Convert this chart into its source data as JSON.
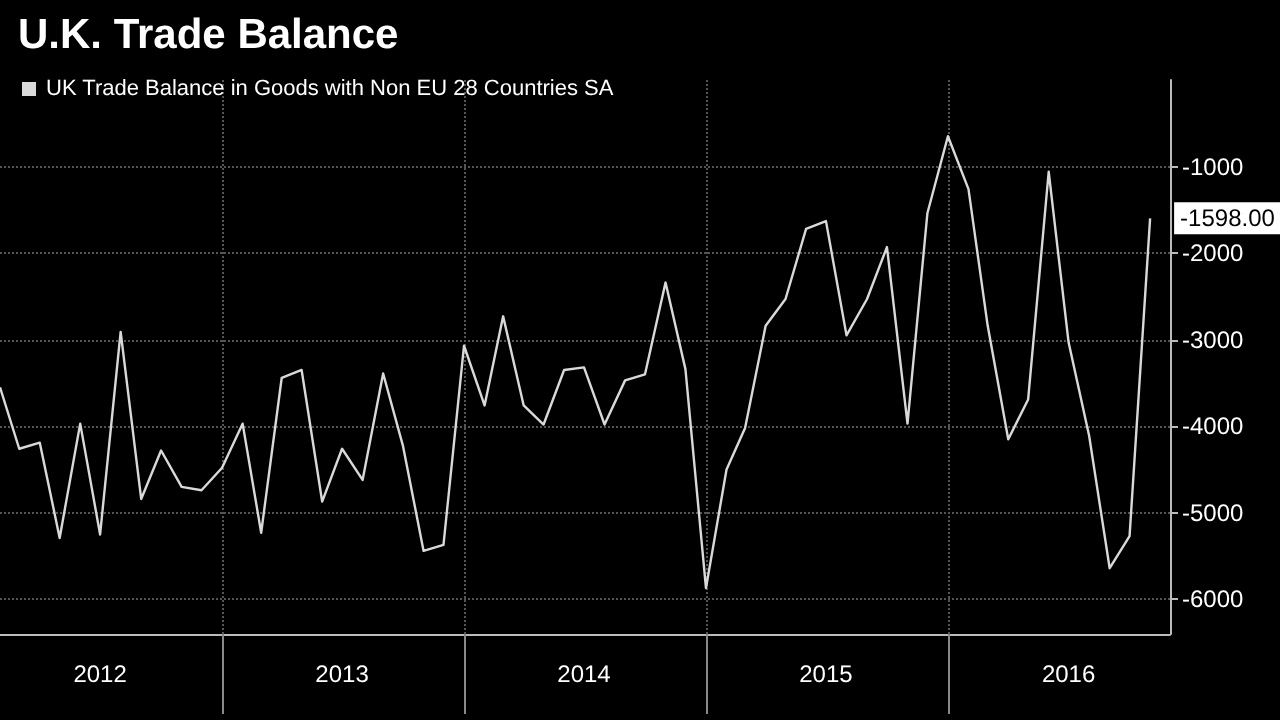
{
  "chart_data": {
    "type": "line",
    "title": "U.K. Trade Balance",
    "x": [
      "2012-02",
      "2012-03",
      "2012-04",
      "2012-05",
      "2012-06",
      "2012-07",
      "2012-08",
      "2012-09",
      "2012-10",
      "2012-11",
      "2012-12",
      "2013-01",
      "2013-02",
      "2013-03",
      "2013-04",
      "2013-05",
      "2013-06",
      "2013-07",
      "2013-08",
      "2013-09",
      "2013-10",
      "2013-11",
      "2013-12",
      "2014-01",
      "2014-02",
      "2014-03",
      "2014-04",
      "2014-05",
      "2014-06",
      "2014-07",
      "2014-08",
      "2014-09",
      "2014-10",
      "2014-11",
      "2014-12",
      "2015-01",
      "2015-02",
      "2015-03",
      "2015-04",
      "2015-05",
      "2015-06",
      "2015-07",
      "2015-08",
      "2015-09",
      "2015-10",
      "2015-11",
      "2015-12",
      "2016-01",
      "2016-02",
      "2016-03",
      "2016-04",
      "2016-05",
      "2016-06",
      "2016-07",
      "2016-08",
      "2016-09",
      "2016-10",
      "2016-11"
    ],
    "series": [
      {
        "name": "UK Trade Balance in Goods with Non EU 28 Countries SA",
        "color": "#d9d9d9",
        "values": [
          -3550,
          -4260,
          -4190,
          -5290,
          -3970,
          -5250,
          -2910,
          -4840,
          -4280,
          -4700,
          -4740,
          -4480,
          -3970,
          -5230,
          -3440,
          -3350,
          -4870,
          -4260,
          -4620,
          -3390,
          -4230,
          -5440,
          -5370,
          -3070,
          -3760,
          -2730,
          -3760,
          -3980,
          -3350,
          -3320,
          -3980,
          -3470,
          -3400,
          -2340,
          -3340,
          -5870,
          -4500,
          -4020,
          -2840,
          -2530,
          -1720,
          -1630,
          -2950,
          -2530,
          -1930,
          -3970,
          -1540,
          -650,
          -1260,
          -2840,
          -4150,
          -3690,
          -1060,
          -3030,
          -4110,
          -5640,
          -5270,
          -1598
        ],
        "value_labels": [
          null,
          null,
          null,
          null,
          null,
          null,
          null,
          null,
          null,
          null,
          null,
          null,
          null,
          null,
          null,
          null,
          null,
          null,
          null,
          null,
          null,
          null,
          null,
          null,
          null,
          null,
          null,
          null,
          null,
          null,
          null,
          null,
          null,
          null,
          null,
          null,
          null,
          null,
          null,
          null,
          null,
          null,
          null,
          null,
          null,
          null,
          null,
          null,
          null,
          null,
          null,
          null,
          null,
          null,
          null,
          null,
          null,
          "-1598.00"
        ]
      }
    ],
    "xlim": [
      "2012-02",
      "2016-12"
    ],
    "xticks": [
      {
        "value": "2012-07",
        "label": "2012"
      },
      {
        "value": "2013-01",
        "label": null
      },
      {
        "value": "2013-07",
        "label": "2013"
      },
      {
        "value": "2014-01",
        "label": null
      },
      {
        "value": "2014-07",
        "label": "2014"
      },
      {
        "value": "2015-01",
        "label": null
      },
      {
        "value": "2015-07",
        "label": "2015"
      },
      {
        "value": "2016-01",
        "label": null
      },
      {
        "value": "2016-07",
        "label": "2016"
      }
    ],
    "ylim": [
      -6400,
      0
    ],
    "yticks": [
      -6000,
      -5000,
      -4000,
      -3000,
      -2000,
      -1000
    ],
    "grid": true,
    "legend": "top left",
    "marker": "none",
    "line_style": "solid"
  }
}
